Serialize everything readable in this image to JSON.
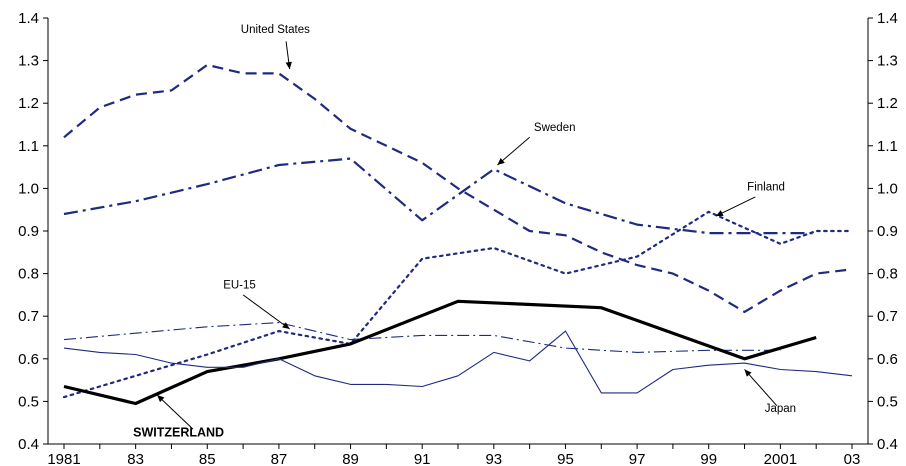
{
  "chart_data": {
    "type": "line",
    "title": "",
    "xlabel": "",
    "ylabel": "",
    "x_tick_labels": [
      "1981",
      "83",
      "85",
      "87",
      "89",
      "91",
      "93",
      "95",
      "97",
      "99",
      "2001",
      "03"
    ],
    "x_tick_years": [
      1981,
      1983,
      1985,
      1987,
      1989,
      1991,
      1993,
      1995,
      1997,
      1999,
      2001,
      2003
    ],
    "xlim": [
      1981,
      2003.6
    ],
    "ylim": [
      0.4,
      1.4
    ],
    "y_ticks": [
      0.4,
      0.5,
      0.6,
      0.7,
      0.8,
      0.9,
      1.0,
      1.1,
      1.2,
      1.3,
      1.4
    ],
    "y_tick_labels": [
      "0.4",
      "0.5",
      "0.6",
      "0.7",
      "0.8",
      "0.9",
      "1.0",
      "1.1",
      "1.2",
      "1.3",
      "1.4"
    ],
    "grid": false,
    "axes": "left and right y-axes, identical scales",
    "series": [
      {
        "name": "United States",
        "color": "#1f2a80",
        "style": "dashed",
        "x": [
          1981,
          1982,
          1983,
          1984,
          1985,
          1986,
          1987,
          1988,
          1989,
          1990,
          1991,
          1992,
          1993,
          1994,
          1995,
          1996,
          1997,
          1998,
          1999,
          2000,
          2001,
          2002,
          2003
        ],
        "values": [
          1.12,
          1.19,
          1.22,
          1.23,
          1.29,
          1.27,
          1.27,
          1.21,
          1.14,
          1.1,
          1.06,
          1.0,
          0.95,
          0.9,
          0.89,
          0.85,
          0.82,
          0.8,
          0.76,
          0.71,
          0.76,
          0.8,
          0.81
        ]
      },
      {
        "name": "Sweden",
        "color": "#1f2a80",
        "style": "dash-dot",
        "x": [
          1981,
          1983,
          1985,
          1987,
          1989,
          1991,
          1993,
          1995,
          1997,
          1999,
          2001,
          2002
        ],
        "values": [
          0.94,
          0.97,
          1.01,
          1.055,
          1.07,
          0.925,
          1.045,
          0.965,
          0.915,
          0.895,
          0.895,
          0.895
        ]
      },
      {
        "name": "Finland",
        "color": "#1f2a80",
        "style": "dotted",
        "x": [
          1981,
          1983,
          1985,
          1987,
          1989,
          1991,
          1993,
          1995,
          1997,
          1999,
          2001,
          2002,
          2003
        ],
        "values": [
          0.51,
          0.56,
          0.61,
          0.665,
          0.635,
          0.835,
          0.86,
          0.8,
          0.84,
          0.945,
          0.87,
          0.9,
          0.9
        ]
      },
      {
        "name": "EU-15",
        "color": "#1f2a80",
        "style": "long-dash-dot (thin)",
        "x": [
          1981,
          1983,
          1985,
          1987,
          1989,
          1991,
          1993,
          1995,
          1997,
          1999,
          2001
        ],
        "values": [
          0.645,
          0.66,
          0.675,
          0.685,
          0.645,
          0.655,
          0.655,
          0.625,
          0.615,
          0.62,
          0.62
        ]
      },
      {
        "name": "SWITZERLAND",
        "color": "#000000",
        "style": "solid (thick)",
        "x": [
          1981,
          1983,
          1985,
          1987,
          1989,
          1992,
          1996,
          2000,
          2002
        ],
        "values": [
          0.535,
          0.495,
          0.57,
          0.6,
          0.635,
          0.735,
          0.72,
          0.6,
          0.65
        ]
      },
      {
        "name": "Japan",
        "color": "#1f2a80",
        "style": "solid (thin)",
        "x": [
          1981,
          1982,
          1983,
          1984,
          1985,
          1986,
          1987,
          1988,
          1989,
          1990,
          1991,
          1992,
          1993,
          1994,
          1995,
          1996,
          1997,
          1998,
          1999,
          2000,
          2001,
          2002,
          2003
        ],
        "values": [
          0.625,
          0.615,
          0.61,
          0.59,
          0.58,
          0.58,
          0.6,
          0.56,
          0.54,
          0.54,
          0.535,
          0.56,
          0.615,
          0.595,
          0.665,
          0.52,
          0.52,
          0.575,
          0.585,
          0.59,
          0.575,
          0.57,
          0.56
        ]
      }
    ],
    "annotations": [
      {
        "text": "United States",
        "bold": false
      },
      {
        "text": "Sweden",
        "bold": false
      },
      {
        "text": "Finland",
        "bold": false
      },
      {
        "text": "EU-15",
        "bold": false
      },
      {
        "text": "SWITZERLAND",
        "bold": true
      },
      {
        "text": "Japan",
        "bold": false
      }
    ]
  }
}
